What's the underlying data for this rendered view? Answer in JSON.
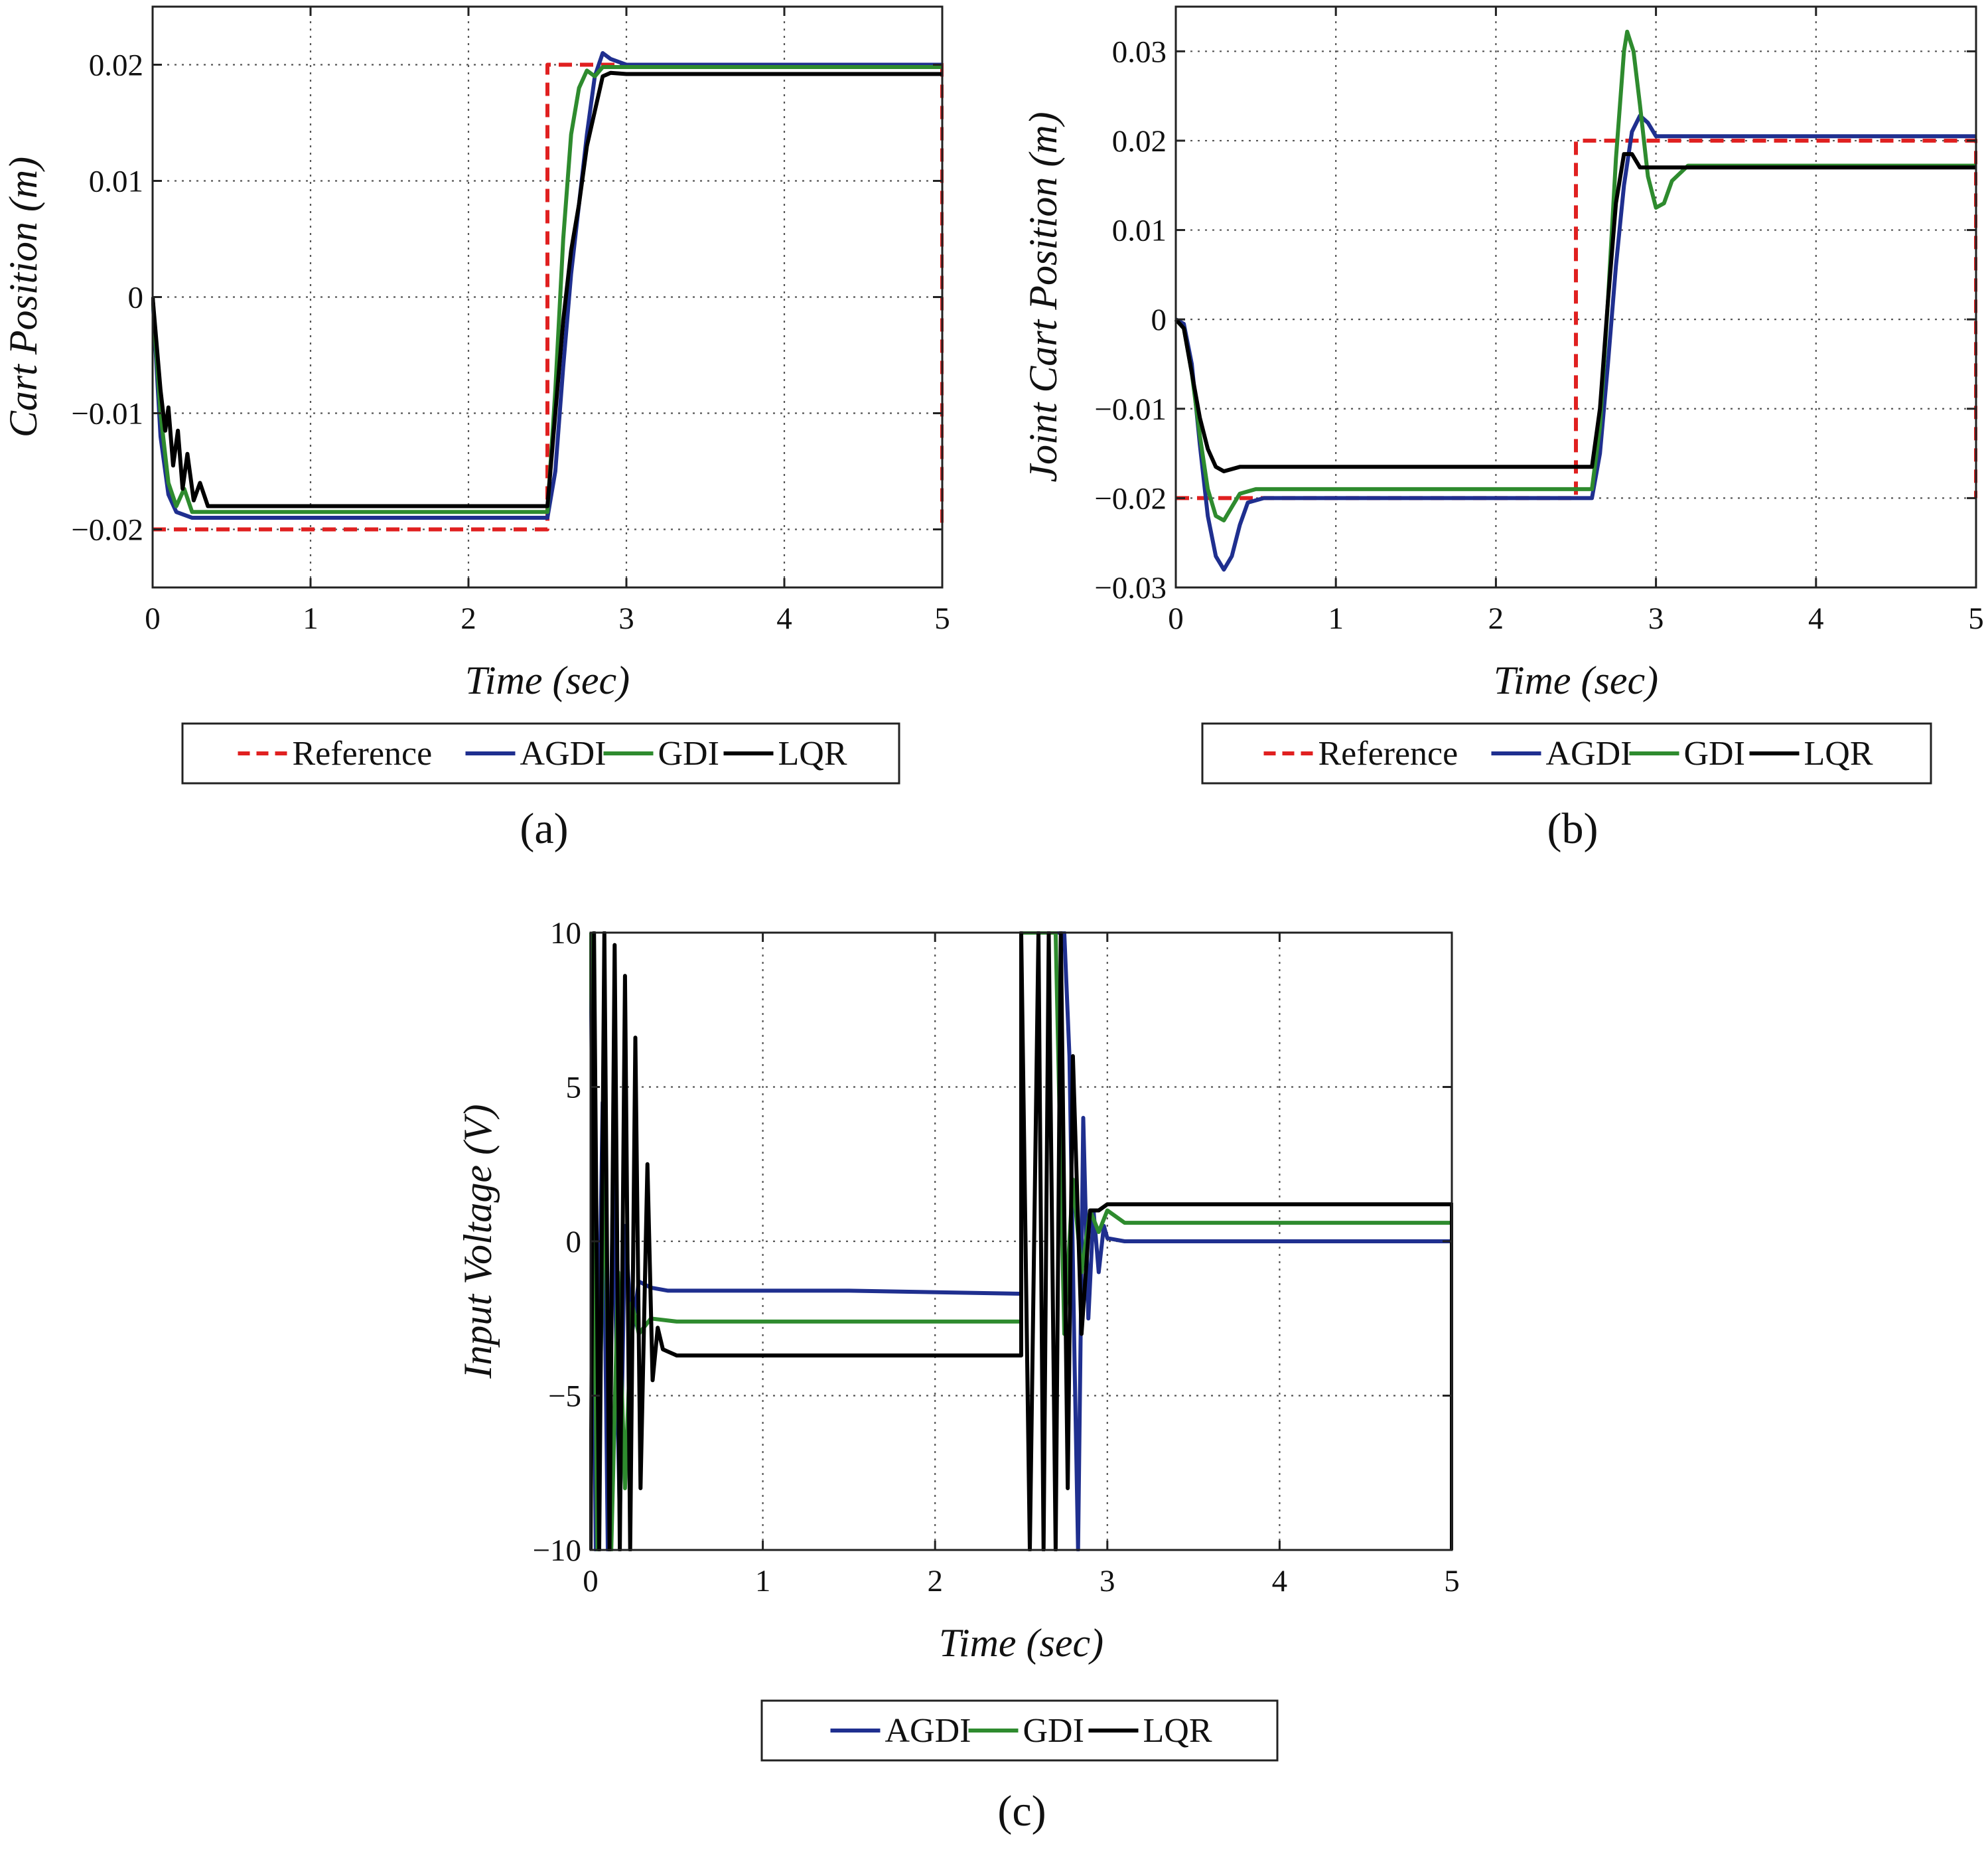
{
  "figure": {
    "panel_labels": [
      "(a)",
      "(b)",
      "(c)"
    ]
  },
  "chart_data": [
    {
      "id": "a",
      "type": "line",
      "title": "",
      "xlabel": "Time (sec)",
      "ylabel": "Cart Position (m)",
      "xlim": [
        0,
        5
      ],
      "ylim": [
        -0.025,
        0.025
      ],
      "xticks": [
        0,
        1,
        2,
        3,
        4,
        5
      ],
      "xtick_labels": [
        "0",
        "1",
        "2",
        "3",
        "4",
        "5"
      ],
      "yticks": [
        -0.02,
        -0.01,
        0,
        0.01,
        0.02
      ],
      "ytick_labels": [
        "−0.02",
        "−0.01",
        "0",
        "0.01",
        "0.02"
      ],
      "grid": true,
      "legend_position": "below",
      "series": [
        {
          "name": "Reference",
          "color": "#e02020",
          "dash": true,
          "points": [
            [
              0,
              -0.02
            ],
            [
              2.5,
              -0.02
            ],
            [
              2.5,
              0.02
            ],
            [
              5,
              0.02
            ],
            [
              5,
              -0.02
            ]
          ]
        },
        {
          "name": "AGDI",
          "color": "#1f2f8f",
          "dash": false,
          "points": [
            [
              0,
              0
            ],
            [
              0.05,
              -0.012
            ],
            [
              0.1,
              -0.017
            ],
            [
              0.15,
              -0.0185
            ],
            [
              0.25,
              -0.019
            ],
            [
              0.5,
              -0.019
            ],
            [
              2.5,
              -0.019
            ],
            [
              2.55,
              -0.015
            ],
            [
              2.6,
              -0.006
            ],
            [
              2.65,
              0.002
            ],
            [
              2.7,
              0.008
            ],
            [
              2.75,
              0.014
            ],
            [
              2.8,
              0.019
            ],
            [
              2.85,
              0.021
            ],
            [
              2.9,
              0.0205
            ],
            [
              3.0,
              0.02
            ],
            [
              5,
              0.02
            ]
          ]
        },
        {
          "name": "GDI",
          "color": "#2e8b2e",
          "dash": false,
          "points": [
            [
              0,
              0
            ],
            [
              0.05,
              -0.01
            ],
            [
              0.1,
              -0.016
            ],
            [
              0.15,
              -0.018
            ],
            [
              0.2,
              -0.0165
            ],
            [
              0.25,
              -0.0185
            ],
            [
              0.35,
              -0.0185
            ],
            [
              2.5,
              -0.0185
            ],
            [
              2.55,
              -0.008
            ],
            [
              2.6,
              0.005
            ],
            [
              2.65,
              0.014
            ],
            [
              2.7,
              0.018
            ],
            [
              2.75,
              0.0195
            ],
            [
              2.8,
              0.019
            ],
            [
              2.85,
              0.0198
            ],
            [
              3.0,
              0.0198
            ],
            [
              5,
              0.0198
            ]
          ]
        },
        {
          "name": "LQR",
          "color": "#000000",
          "dash": false,
          "points": [
            [
              0,
              0
            ],
            [
              0.05,
              -0.008
            ],
            [
              0.08,
              -0.0115
            ],
            [
              0.1,
              -0.0095
            ],
            [
              0.13,
              -0.0145
            ],
            [
              0.16,
              -0.0115
            ],
            [
              0.19,
              -0.0165
            ],
            [
              0.22,
              -0.0135
            ],
            [
              0.26,
              -0.0175
            ],
            [
              0.3,
              -0.016
            ],
            [
              0.35,
              -0.018
            ],
            [
              0.5,
              -0.018
            ],
            [
              2.5,
              -0.018
            ],
            [
              2.55,
              -0.01
            ],
            [
              2.6,
              -0.002
            ],
            [
              2.65,
              0.004
            ],
            [
              2.7,
              0.008
            ],
            [
              2.75,
              0.013
            ],
            [
              2.8,
              0.016
            ],
            [
              2.85,
              0.019
            ],
            [
              2.9,
              0.0193
            ],
            [
              3.0,
              0.0192
            ],
            [
              5,
              0.0192
            ]
          ]
        }
      ]
    },
    {
      "id": "b",
      "type": "line",
      "title": "",
      "xlabel": "Time (sec)",
      "ylabel": "Joint Cart Position (m)",
      "xlim": [
        0,
        5
      ],
      "ylim": [
        -0.03,
        0.035
      ],
      "xticks": [
        0,
        1,
        2,
        3,
        4,
        5
      ],
      "xtick_labels": [
        "0",
        "1",
        "2",
        "3",
        "4",
        "5"
      ],
      "yticks": [
        -0.03,
        -0.02,
        -0.01,
        0,
        0.01,
        0.02,
        0.03
      ],
      "ytick_labels": [
        "−0.03",
        "−0.02",
        "−0.01",
        "0",
        "0.01",
        "0.02",
        "0.03"
      ],
      "grid": true,
      "legend_position": "below",
      "series": [
        {
          "name": "Reference",
          "color": "#e02020",
          "dash": true,
          "points": [
            [
              0,
              -0.02
            ],
            [
              2.5,
              -0.02
            ],
            [
              2.5,
              0.02
            ],
            [
              5,
              0.02
            ],
            [
              5,
              -0.02
            ]
          ]
        },
        {
          "name": "AGDI",
          "color": "#1f2f8f",
          "dash": false,
          "points": [
            [
              0,
              0
            ],
            [
              0.05,
              -0.0005
            ],
            [
              0.1,
              -0.005
            ],
            [
              0.15,
              -0.014
            ],
            [
              0.2,
              -0.022
            ],
            [
              0.25,
              -0.0265
            ],
            [
              0.3,
              -0.028
            ],
            [
              0.35,
              -0.0265
            ],
            [
              0.4,
              -0.023
            ],
            [
              0.45,
              -0.0205
            ],
            [
              0.55,
              -0.02
            ],
            [
              2.6,
              -0.02
            ],
            [
              2.65,
              -0.015
            ],
            [
              2.7,
              -0.005
            ],
            [
              2.75,
              0.006
            ],
            [
              2.8,
              0.015
            ],
            [
              2.85,
              0.021
            ],
            [
              2.9,
              0.0228
            ],
            [
              2.95,
              0.022
            ],
            [
              3.0,
              0.0205
            ],
            [
              5,
              0.0205
            ]
          ]
        },
        {
          "name": "GDI",
          "color": "#2e8b2e",
          "dash": false,
          "points": [
            [
              0,
              0
            ],
            [
              0.05,
              -0.001
            ],
            [
              0.1,
              -0.006
            ],
            [
              0.15,
              -0.013
            ],
            [
              0.2,
              -0.019
            ],
            [
              0.25,
              -0.022
            ],
            [
              0.3,
              -0.0225
            ],
            [
              0.35,
              -0.021
            ],
            [
              0.4,
              -0.0195
            ],
            [
              0.5,
              -0.019
            ],
            [
              2.6,
              -0.019
            ],
            [
              2.65,
              -0.012
            ],
            [
              2.7,
              0.002
            ],
            [
              2.75,
              0.018
            ],
            [
              2.8,
              0.03
            ],
            [
              2.82,
              0.0322
            ],
            [
              2.86,
              0.03
            ],
            [
              2.9,
              0.024
            ],
            [
              2.95,
              0.016
            ],
            [
              3.0,
              0.0125
            ],
            [
              3.05,
              0.013
            ],
            [
              3.1,
              0.0155
            ],
            [
              3.2,
              0.0172
            ],
            [
              5,
              0.0172
            ]
          ]
        },
        {
          "name": "LQR",
          "color": "#000000",
          "dash": false,
          "points": [
            [
              0,
              0
            ],
            [
              0.05,
              -0.001
            ],
            [
              0.1,
              -0.006
            ],
            [
              0.15,
              -0.011
            ],
            [
              0.2,
              -0.0145
            ],
            [
              0.25,
              -0.0165
            ],
            [
              0.3,
              -0.017
            ],
            [
              0.4,
              -0.0165
            ],
            [
              2.6,
              -0.0165
            ],
            [
              2.65,
              -0.01
            ],
            [
              2.7,
              0.002
            ],
            [
              2.75,
              0.013
            ],
            [
              2.8,
              0.0185
            ],
            [
              2.85,
              0.0185
            ],
            [
              2.9,
              0.017
            ],
            [
              3.0,
              0.017
            ],
            [
              5,
              0.017
            ]
          ]
        }
      ]
    },
    {
      "id": "c",
      "type": "line",
      "title": "",
      "xlabel": "Time (sec)",
      "ylabel": "Input Voltage (V)",
      "xlim": [
        0,
        5
      ],
      "ylim": [
        -10,
        10
      ],
      "xticks": [
        0,
        1,
        2,
        3,
        4,
        5
      ],
      "xtick_labels": [
        "0",
        "1",
        "2",
        "3",
        "4",
        "5"
      ],
      "yticks": [
        -10,
        -5,
        0,
        5,
        10
      ],
      "ytick_labels": [
        "−10",
        "−5",
        "0",
        "5",
        "10"
      ],
      "grid": true,
      "legend_position": "below",
      "series": [
        {
          "name": "AGDI",
          "color": "#1f2f8f",
          "dash": false,
          "points": [
            [
              0,
              10
            ],
            [
              0.03,
              -10
            ],
            [
              0.07,
              4.5
            ],
            [
              0.1,
              -10
            ],
            [
              0.13,
              2
            ],
            [
              0.17,
              -9
            ],
            [
              0.2,
              0.5
            ],
            [
              0.24,
              -3
            ],
            [
              0.28,
              -1.3
            ],
            [
              0.35,
              -1.5
            ],
            [
              0.45,
              -1.6
            ],
            [
              1.5,
              -1.6
            ],
            [
              2.5,
              -1.7
            ],
            [
              2.5,
              10
            ],
            [
              2.6,
              10
            ],
            [
              2.7,
              10
            ],
            [
              2.75,
              10
            ],
            [
              2.78,
              6
            ],
            [
              2.81,
              -4
            ],
            [
              2.83,
              -10
            ],
            [
              2.86,
              4
            ],
            [
              2.89,
              -2.5
            ],
            [
              2.92,
              1
            ],
            [
              2.95,
              -1
            ],
            [
              2.98,
              0.5
            ],
            [
              3.0,
              0.1
            ],
            [
              3.1,
              0
            ],
            [
              5,
              0
            ],
            [
              5,
              -10
            ]
          ]
        },
        {
          "name": "GDI",
          "color": "#2e8b2e",
          "dash": false,
          "points": [
            [
              0,
              10
            ],
            [
              0.04,
              -10
            ],
            [
              0.08,
              3
            ],
            [
              0.12,
              -10
            ],
            [
              0.16,
              -1
            ],
            [
              0.2,
              -8
            ],
            [
              0.24,
              -2
            ],
            [
              0.28,
              -3
            ],
            [
              0.35,
              -2.5
            ],
            [
              0.5,
              -2.6
            ],
            [
              2.5,
              -2.6
            ],
            [
              2.5,
              10
            ],
            [
              2.65,
              10
            ],
            [
              2.7,
              10
            ],
            [
              2.75,
              -3
            ],
            [
              2.8,
              2
            ],
            [
              2.85,
              -1
            ],
            [
              2.9,
              1
            ],
            [
              2.95,
              0.3
            ],
            [
              3.0,
              1
            ],
            [
              3.1,
              0.6
            ],
            [
              5,
              0.6
            ],
            [
              5,
              -10
            ]
          ]
        },
        {
          "name": "LQR",
          "color": "#000000",
          "dash": false,
          "points": [
            [
              0,
              -10
            ],
            [
              0.02,
              10
            ],
            [
              0.05,
              -10
            ],
            [
              0.08,
              10
            ],
            [
              0.11,
              -10
            ],
            [
              0.14,
              9.6
            ],
            [
              0.17,
              -10
            ],
            [
              0.2,
              8.6
            ],
            [
              0.23,
              -10
            ],
            [
              0.26,
              6.6
            ],
            [
              0.29,
              -8
            ],
            [
              0.33,
              2.5
            ],
            [
              0.36,
              -4.5
            ],
            [
              0.39,
              -2.8
            ],
            [
              0.42,
              -3.5
            ],
            [
              0.5,
              -3.7
            ],
            [
              2.5,
              -3.7
            ],
            [
              2.5,
              10
            ],
            [
              2.55,
              -10
            ],
            [
              2.6,
              10
            ],
            [
              2.63,
              -10
            ],
            [
              2.66,
              10
            ],
            [
              2.7,
              -10
            ],
            [
              2.73,
              10
            ],
            [
              2.77,
              -8
            ],
            [
              2.8,
              6
            ],
            [
              2.85,
              -3
            ],
            [
              2.9,
              1
            ],
            [
              2.95,
              1
            ],
            [
              3.0,
              1.2
            ],
            [
              5,
              1.2
            ],
            [
              5,
              -10
            ]
          ]
        }
      ]
    }
  ]
}
